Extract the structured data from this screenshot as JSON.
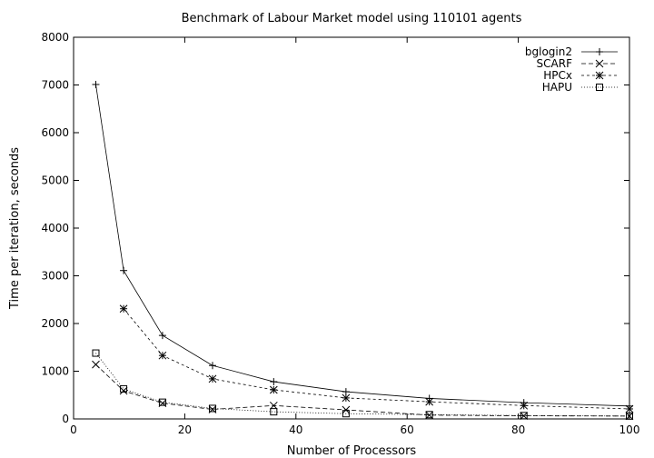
{
  "chart_data": {
    "type": "line",
    "title": "Benchmark of Labour Market model using 110101 agents",
    "xlabel": "Number of Processors",
    "ylabel": "Time per iteration, seconds",
    "xlim": [
      0,
      100
    ],
    "ylim": [
      0,
      8000
    ],
    "x_ticks": [
      0,
      20,
      40,
      60,
      80,
      100
    ],
    "y_ticks": [
      0,
      1000,
      2000,
      3000,
      4000,
      5000,
      6000,
      7000,
      8000
    ],
    "grid": false,
    "legend_position": "top-right",
    "series": [
      {
        "name": "bglogin2",
        "marker": "plus",
        "dash": "solid",
        "points": [
          [
            4,
            7010
          ],
          [
            9,
            3110
          ],
          [
            16,
            1750
          ],
          [
            25,
            1120
          ],
          [
            36,
            780
          ],
          [
            49,
            570
          ],
          [
            64,
            430
          ],
          [
            81,
            340
          ],
          [
            100,
            270
          ]
        ]
      },
      {
        "name": "SCARF",
        "marker": "x",
        "dash": "dashed",
        "points": [
          [
            4,
            1140
          ],
          [
            9,
            590
          ],
          [
            16,
            330
          ],
          [
            25,
            200
          ],
          [
            36,
            280
          ],
          [
            49,
            190
          ],
          [
            64,
            80
          ],
          [
            81,
            65
          ],
          [
            100,
            60
          ]
        ]
      },
      {
        "name": "HPCx",
        "marker": "asterisk",
        "dash": "short-dashed",
        "points": [
          [
            9,
            2310
          ],
          [
            16,
            1330
          ],
          [
            25,
            840
          ],
          [
            36,
            610
          ],
          [
            49,
            440
          ],
          [
            64,
            360
          ],
          [
            81,
            280
          ],
          [
            100,
            210
          ]
        ]
      },
      {
        "name": "HAPU",
        "marker": "square",
        "dash": "dotted",
        "points": [
          [
            4,
            1380
          ],
          [
            9,
            630
          ],
          [
            16,
            350
          ],
          [
            25,
            220
          ],
          [
            36,
            150
          ],
          [
            49,
            110
          ],
          [
            64,
            90
          ],
          [
            81,
            70
          ],
          [
            100,
            60
          ]
        ]
      }
    ]
  }
}
